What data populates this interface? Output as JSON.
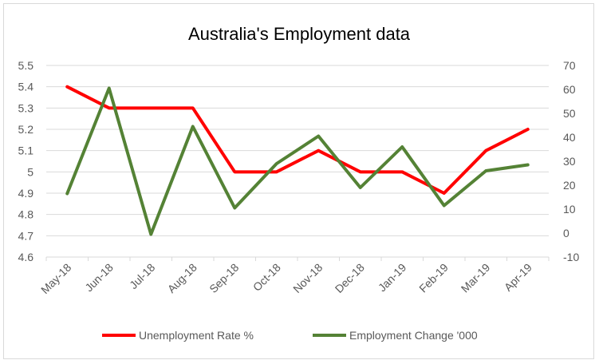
{
  "chart_data": {
    "type": "line",
    "title": "Australia's Employment data",
    "categories": [
      "May-18",
      "Jun-18",
      "Jul-18",
      "Aug-18",
      "Sep-18",
      "Oct-18",
      "Nov-18",
      "Dec-18",
      "Jan-19",
      "Feb-19",
      "Mar-19",
      "Apr-19"
    ],
    "series": [
      {
        "name": "Unemployment Rate %",
        "axis": "left",
        "color": "#ff0000",
        "values": [
          5.4,
          5.3,
          5.3,
          5.3,
          5.0,
          5.0,
          5.1,
          5.0,
          5.0,
          4.9,
          5.1,
          5.2
        ]
      },
      {
        "name": "Employment Change '000",
        "axis": "right",
        "color": "#548235",
        "values": [
          16.5,
          60.5,
          -0.5,
          44.5,
          10.5,
          29,
          40.5,
          19,
          36,
          11.5,
          26,
          28.5
        ]
      }
    ],
    "y_left": {
      "min": 4.6,
      "max": 5.5,
      "ticks": [
        "5.5",
        "5.4",
        "5.3",
        "5.2",
        "5.1",
        "5",
        "4.9",
        "4.8",
        "4.7",
        "4.6"
      ]
    },
    "y_right": {
      "min": -10,
      "max": 70,
      "ticks": [
        "70",
        "60",
        "50",
        "40",
        "30",
        "20",
        "10",
        "0",
        "-10"
      ]
    },
    "grid": "horizontal",
    "legend_position": "bottom"
  }
}
